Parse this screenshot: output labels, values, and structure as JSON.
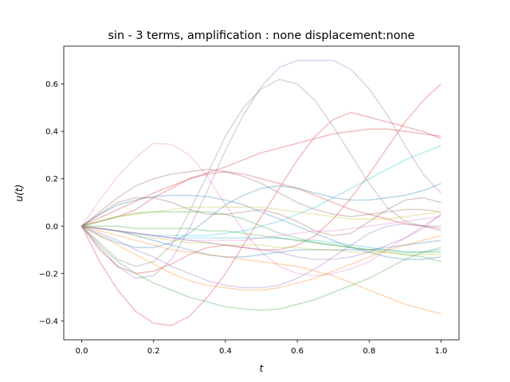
{
  "chart_data": {
    "type": "line",
    "title": "sin - 3 terms, amplification : none displacement:none",
    "xlabel": "t",
    "ylabel": "u(t)",
    "xlim": [
      -0.05,
      1.05
    ],
    "ylim": [
      -0.48,
      0.76
    ],
    "xticks": [
      0.0,
      0.2,
      0.4,
      0.6,
      0.8,
      1.0
    ],
    "xtick_labels": [
      "0.0",
      "0.2",
      "0.4",
      "0.6",
      "0.8",
      "1.0"
    ],
    "yticks": [
      -0.4,
      -0.2,
      0.0,
      0.2,
      0.4,
      0.6
    ],
    "ytick_labels": [
      "−0.4",
      "−0.2",
      "0.0",
      "0.2",
      "0.4",
      "0.6"
    ],
    "grid": false,
    "legend": "none",
    "line_alpha": 0.3,
    "x": [
      0.0,
      0.05,
      0.1,
      0.15,
      0.2,
      0.25,
      0.3,
      0.35,
      0.4,
      0.45,
      0.5,
      0.55,
      0.6,
      0.65,
      0.7,
      0.75,
      0.8,
      0.85,
      0.9,
      0.95,
      1.0
    ],
    "series": [
      {
        "color": "#e377c2",
        "values": [
          0.0,
          0.11,
          0.21,
          0.29,
          0.35,
          0.345,
          0.3,
          0.21,
          0.09,
          -0.02,
          -0.11,
          -0.17,
          -0.2,
          -0.21,
          -0.2,
          -0.18,
          -0.15,
          -0.1,
          -0.05,
          0.0,
          0.05
        ]
      },
      {
        "color": "#7f7f7f",
        "values": [
          0.0,
          -0.07,
          -0.14,
          -0.17,
          -0.15,
          -0.08,
          0.06,
          0.22,
          0.38,
          0.5,
          0.58,
          0.62,
          0.6,
          0.53,
          0.42,
          0.3,
          0.18,
          0.08,
          0.02,
          0.0,
          0.0
        ]
      },
      {
        "color": "#9467bd",
        "values": [
          0.0,
          -0.09,
          -0.17,
          -0.22,
          -0.21,
          -0.14,
          -0.01,
          0.15,
          0.32,
          0.47,
          0.59,
          0.67,
          0.7,
          0.7,
          0.7,
          0.66,
          0.58,
          0.47,
          0.34,
          0.22,
          0.14
        ]
      },
      {
        "color": "#d62728",
        "values": [
          0.0,
          0.035,
          0.07,
          0.105,
          0.14,
          0.17,
          0.2,
          0.225,
          0.25,
          0.28,
          0.31,
          0.33,
          0.35,
          0.37,
          0.39,
          0.4,
          0.41,
          0.41,
          0.4,
          0.39,
          0.38
        ]
      },
      {
        "color": "#d62728",
        "values": [
          0.0,
          -0.15,
          -0.27,
          -0.36,
          -0.41,
          -0.42,
          -0.38,
          -0.3,
          -0.2,
          -0.08,
          0.04,
          0.16,
          0.28,
          0.38,
          0.45,
          0.48,
          0.46,
          0.44,
          0.42,
          0.4,
          0.37
        ]
      },
      {
        "color": "#d62728",
        "values": [
          0.0,
          -0.1,
          -0.17,
          -0.2,
          -0.19,
          -0.16,
          -0.12,
          -0.09,
          -0.08,
          -0.09,
          -0.1,
          -0.1,
          -0.08,
          -0.04,
          0.03,
          0.12,
          0.22,
          0.33,
          0.44,
          0.53,
          0.6
        ]
      },
      {
        "color": "#d62728",
        "values": [
          0.0,
          0.02,
          0.04,
          0.07,
          0.12,
          0.16,
          0.2,
          0.22,
          0.23,
          0.22,
          0.2,
          0.18,
          0.16,
          0.13,
          0.1,
          0.07,
          0.05,
          0.03,
          0.01,
          0.0,
          -0.01
        ]
      },
      {
        "color": "#8c564b",
        "values": [
          0.0,
          0.06,
          0.12,
          0.17,
          0.2,
          0.22,
          0.23,
          0.24,
          0.23,
          0.21,
          0.18,
          0.14,
          0.1,
          0.07,
          0.05,
          0.04,
          0.05,
          0.06,
          0.07,
          0.07,
          0.06
        ]
      },
      {
        "color": "#1f77b4",
        "values": [
          0.0,
          0.05,
          0.09,
          0.11,
          0.125,
          0.13,
          0.13,
          0.125,
          0.11,
          0.09,
          0.06,
          0.03,
          0.0,
          -0.03,
          -0.06,
          -0.09,
          -0.11,
          -0.13,
          -0.14,
          -0.14,
          -0.13
        ]
      },
      {
        "color": "#1f77b4",
        "values": [
          0.0,
          -0.04,
          -0.07,
          -0.09,
          -0.09,
          -0.07,
          -0.03,
          0.03,
          0.09,
          0.13,
          0.16,
          0.17,
          0.16,
          0.14,
          0.12,
          0.11,
          0.11,
          0.12,
          0.13,
          0.15,
          0.18
        ]
      },
      {
        "color": "#1f77b4",
        "values": [
          0.0,
          -0.01,
          -0.02,
          -0.04,
          -0.06,
          -0.08,
          -0.1,
          -0.12,
          -0.13,
          -0.13,
          -0.12,
          -0.11,
          -0.1,
          -0.1,
          -0.1,
          -0.1,
          -0.1,
          -0.09,
          -0.08,
          -0.07,
          -0.06
        ]
      },
      {
        "color": "#17becf",
        "values": [
          0.0,
          -0.01,
          -0.02,
          -0.03,
          -0.04,
          -0.04,
          -0.04,
          -0.04,
          -0.03,
          -0.02,
          0.0,
          0.02,
          0.05,
          0.08,
          0.12,
          0.16,
          0.2,
          0.24,
          0.28,
          0.31,
          0.34
        ]
      },
      {
        "color": "#17becf",
        "values": [
          0.0,
          -0.01,
          -0.02,
          -0.03,
          -0.04,
          -0.05,
          -0.05,
          -0.05,
          -0.05,
          -0.05,
          -0.05,
          -0.05,
          -0.06,
          -0.06,
          -0.07,
          -0.08,
          -0.09,
          -0.1,
          -0.11,
          -0.11,
          -0.1
        ]
      },
      {
        "color": "#2ca02c",
        "values": [
          0.0,
          0.02,
          0.04,
          0.055,
          0.06,
          0.06,
          0.06,
          0.06,
          0.05,
          0.03,
          0.0,
          -0.03,
          -0.05,
          -0.07,
          -0.08,
          -0.09,
          -0.1,
          -0.1,
          -0.11,
          -0.11,
          -0.11
        ]
      },
      {
        "color": "#2ca02c",
        "values": [
          0.0,
          -0.08,
          -0.15,
          -0.2,
          -0.24,
          -0.27,
          -0.3,
          -0.32,
          -0.34,
          -0.35,
          -0.355,
          -0.35,
          -0.33,
          -0.31,
          -0.28,
          -0.25,
          -0.22,
          -0.18,
          -0.14,
          -0.11,
          -0.09
        ]
      },
      {
        "color": "#2ca02c",
        "values": [
          0.0,
          0.0,
          0.0,
          -0.01,
          -0.01,
          -0.01,
          -0.01,
          -0.02,
          -0.02,
          -0.03,
          -0.04,
          -0.05,
          -0.06,
          -0.07,
          -0.08,
          -0.09,
          -0.1,
          -0.11,
          -0.12,
          -0.13,
          -0.15
        ]
      },
      {
        "color": "#ff7f0e",
        "values": [
          0.0,
          -0.04,
          -0.08,
          -0.12,
          -0.16,
          -0.2,
          -0.23,
          -0.25,
          -0.26,
          -0.27,
          -0.27,
          -0.26,
          -0.24,
          -0.22,
          -0.19,
          -0.16,
          -0.13,
          -0.1,
          -0.08,
          -0.06,
          -0.04
        ]
      },
      {
        "color": "#ff7f0e",
        "values": [
          0.0,
          -0.02,
          -0.04,
          -0.06,
          -0.08,
          -0.1,
          -0.11,
          -0.12,
          -0.13,
          -0.14,
          -0.15,
          -0.16,
          -0.17,
          -0.19,
          -0.21,
          -0.24,
          -0.27,
          -0.3,
          -0.33,
          -0.35,
          -0.37
        ]
      },
      {
        "color": "#bcbd22",
        "values": [
          0.0,
          0.02,
          0.04,
          0.05,
          0.06,
          0.07,
          0.08,
          0.08,
          0.08,
          0.08,
          0.08,
          0.07,
          0.06,
          0.05,
          0.04,
          0.03,
          0.03,
          0.03,
          0.04,
          0.05,
          0.06
        ]
      },
      {
        "color": "#bcbd22",
        "values": [
          0.0,
          -0.01,
          -0.02,
          -0.04,
          -0.05,
          -0.06,
          -0.07,
          -0.07,
          -0.08,
          -0.08,
          -0.08,
          -0.09,
          -0.09,
          -0.1,
          -0.1,
          -0.11,
          -0.11,
          -0.11,
          -0.12,
          -0.12,
          -0.12
        ]
      },
      {
        "color": "#9467bd",
        "values": [
          0.0,
          -0.03,
          -0.06,
          -0.1,
          -0.13,
          -0.17,
          -0.2,
          -0.23,
          -0.25,
          -0.26,
          -0.26,
          -0.25,
          -0.22,
          -0.18,
          -0.13,
          -0.08,
          -0.03,
          0.0,
          0.01,
          0.0,
          -0.02
        ]
      },
      {
        "color": "#9467bd",
        "values": [
          0.0,
          -0.01,
          -0.02,
          -0.03,
          -0.04,
          -0.05,
          -0.06,
          -0.07,
          -0.08,
          -0.09,
          -0.1,
          -0.11,
          -0.13,
          -0.14,
          -0.14,
          -0.13,
          -0.11,
          -0.08,
          -0.05,
          -0.01,
          0.05
        ]
      },
      {
        "color": "#8c564b",
        "values": [
          0.0,
          0.05,
          0.1,
          0.12,
          0.12,
          0.1,
          0.07,
          0.05,
          0.05,
          0.06,
          0.07,
          0.05,
          0.02,
          -0.02,
          -0.04,
          -0.03,
          0.02,
          0.07,
          0.11,
          0.12,
          0.1
        ]
      },
      {
        "color": "#e377c2",
        "values": [
          0.0,
          -0.01,
          -0.02,
          -0.03,
          -0.04,
          -0.05,
          -0.06,
          -0.06,
          -0.06,
          -0.06,
          -0.05,
          -0.04,
          -0.03,
          -0.02,
          -0.02,
          -0.01,
          0.0,
          0.01,
          0.02,
          0.03,
          0.04
        ]
      }
    ]
  }
}
